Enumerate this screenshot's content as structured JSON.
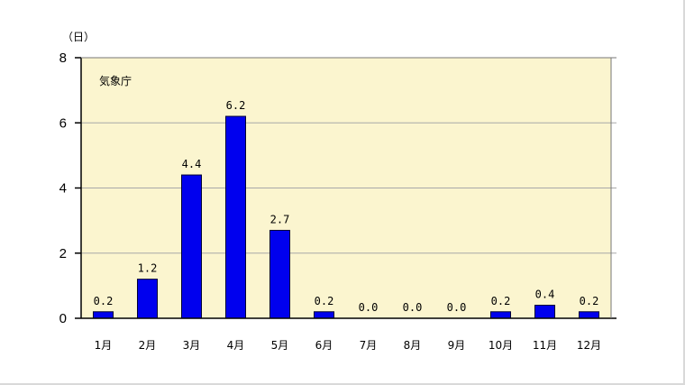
{
  "chart_data": {
    "type": "bar",
    "y_unit_label": "（日）",
    "source_label": "気象庁",
    "categories": [
      "1月",
      "2月",
      "3月",
      "4月",
      "5月",
      "6月",
      "7月",
      "8月",
      "9月",
      "10月",
      "11月",
      "12月"
    ],
    "values": [
      0.2,
      1.2,
      4.4,
      6.2,
      2.7,
      0.2,
      0.0,
      0.0,
      0.0,
      0.2,
      0.4,
      0.2
    ],
    "data_labels": [
      "0.2",
      "1.2",
      "4.4",
      "6.2",
      "2.7",
      "0.2",
      "0.0",
      "0.0",
      "0.0",
      "0.2",
      "0.4",
      "0.2"
    ],
    "ylim": [
      0,
      8
    ],
    "yticks": [
      0,
      2,
      4,
      6,
      8
    ],
    "grid": true,
    "colors": {
      "bar": "#0000ee",
      "bar_edge": "#000033",
      "plot_background": "#fbf5cf",
      "grid": "#a8a8a8"
    }
  }
}
